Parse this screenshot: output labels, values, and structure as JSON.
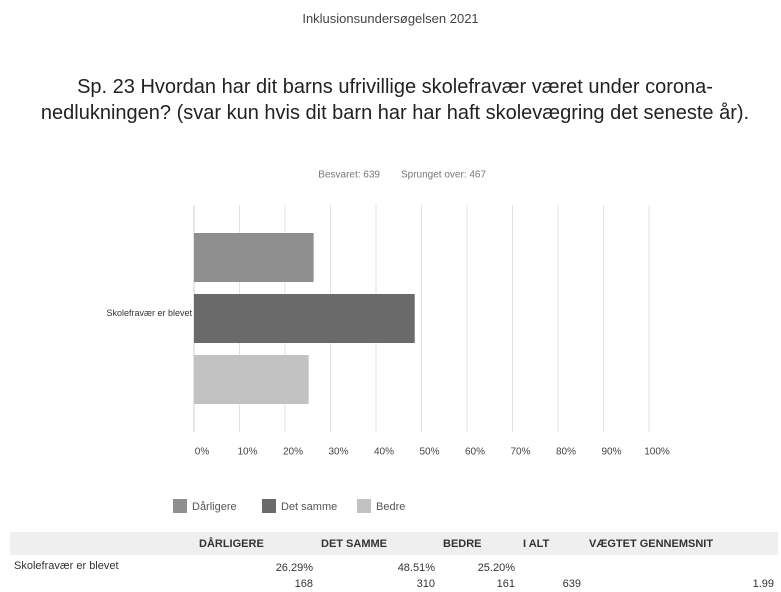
{
  "survey": "Inklusionsundersøgelsen 2021",
  "chart_data": {
    "type": "bar",
    "orientation": "horizontal",
    "title": "Sp. 23 Hvordan har dit barns ufrivillige skolefravær været under corona-nedlukningen? (svar kun hvis dit barn har har haft skolevægring det seneste år).",
    "subtitle": [
      "Besvaret: 639",
      "Sprunget over: 467"
    ],
    "categories": [
      "Skolefravær er blevet"
    ],
    "series": [
      {
        "name": "Dårligere",
        "color": "#8f8f8f",
        "values": [
          26.29
        ]
      },
      {
        "name": "Det samme",
        "color": "#6a6a6a",
        "values": [
          48.51
        ]
      },
      {
        "name": "Bedre",
        "color": "#c2c2c2",
        "values": [
          25.2
        ]
      }
    ],
    "xlim": [
      0,
      100
    ],
    "xticks": [
      {
        "value": 0,
        "label": "0%"
      },
      {
        "value": 10,
        "label": "10%"
      },
      {
        "value": 20,
        "label": "20%"
      },
      {
        "value": 30,
        "label": "30%"
      },
      {
        "value": 40,
        "label": "40%"
      },
      {
        "value": 50,
        "label": "50%"
      },
      {
        "value": 60,
        "label": "60%"
      },
      {
        "value": 70,
        "label": "70%"
      },
      {
        "value": 80,
        "label": "80%"
      },
      {
        "value": 90,
        "label": "90%"
      },
      {
        "value": 100,
        "label": "100%"
      }
    ],
    "grid": true,
    "legend": "bottom"
  },
  "table": {
    "header": [
      "DÅRLIGERE",
      "DET SAMME",
      "BEDRE",
      "I ALT",
      "VÆGTET GENNEMSNIT"
    ],
    "rows": [
      {
        "label": "Skolefravær er blevet",
        "cells": [
          {
            "percent": "26.29%",
            "count": 168
          },
          {
            "percent": "48.51%",
            "count": 310
          },
          {
            "percent": "25.20%",
            "count": 161
          }
        ],
        "total": 639,
        "average": 1.99
      }
    ]
  }
}
